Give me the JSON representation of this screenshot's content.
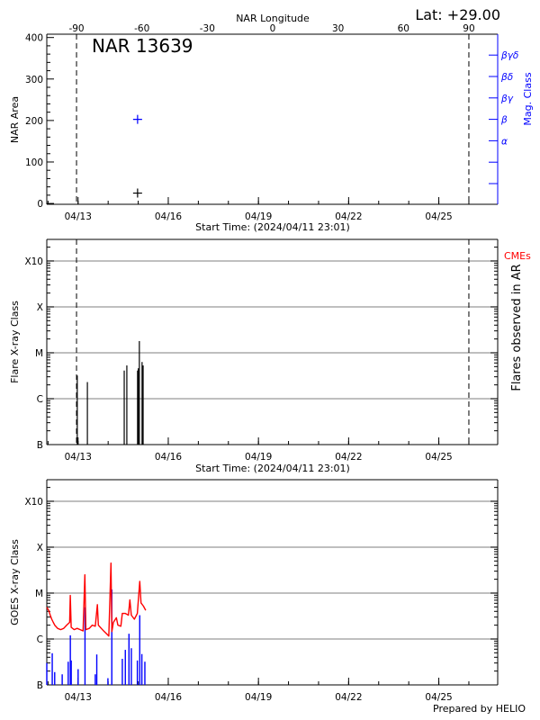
{
  "header": {
    "lat_label": "Lat: +29.00"
  },
  "footer": {
    "prepared_by": "Prepared by HELIO"
  },
  "chart_data": [
    {
      "type": "scatter",
      "title": "NAR 13639",
      "top_xlabel": "NAR Longitude",
      "top_xticks": [
        "-90",
        "-60",
        "-30",
        "0",
        "30",
        "60",
        "90"
      ],
      "xlabel": "Start Time: (2024/04/11 23:01)",
      "ylabel": "NAR Area",
      "y2label": "Mag. Class",
      "xlim": [
        "2024-04-11T23:01",
        "2024-04-26T23:01"
      ],
      "xtick_dates": [
        "2024-04-13T00:00",
        "2024-04-16T00:00",
        "2024-04-19T00:00",
        "2024-04-22T00:00",
        "2024-04-25T00:00"
      ],
      "xtick_labels": [
        "04/13",
        "04/16",
        "04/19",
        "04/22",
        "04/25"
      ],
      "ylim": [
        -2,
        408
      ],
      "yticks": [
        "0",
        "100",
        "200",
        "300",
        "400"
      ],
      "limb_lines": [
        {
          "longitude": -90,
          "time": "2024-04-12T22:45"
        },
        {
          "longitude": 90,
          "time": "2024-04-26T00:00"
        }
      ],
      "mag_class_ticks": [
        "",
        "",
        "α",
        "β",
        "βγ",
        "βδ",
        "βγδ"
      ],
      "area_points": [
        {
          "time": "2024-04-14T23:30",
          "value": 25
        }
      ],
      "mag_class_points": [
        {
          "time": "2024-04-14T23:30",
          "value": "β"
        }
      ],
      "colors": {
        "area": "#000000",
        "mag_class": "#0000ff"
      }
    },
    {
      "type": "bar",
      "xlabel": "Start Time: (2024/04/11 23:01)",
      "ylabel": "Flare X-ray Class",
      "y2label": "Flares observed in AR",
      "cme_label": "CMEs",
      "yscale": "log",
      "ylim": [
        1e-07,
        0.00295
      ],
      "yticks": [
        {
          "label": "B",
          "value": 1e-07
        },
        {
          "label": "C",
          "value": 1e-06
        },
        {
          "label": "M",
          "value": 1e-05
        },
        {
          "label": "X",
          "value": 0.0001
        },
        {
          "label": "X10",
          "value": 0.001
        }
      ],
      "grid": true,
      "xlim": [
        "2024-04-11T23:01",
        "2024-04-26T23:01"
      ],
      "xtick_dates": [
        "2024-04-13T00:00",
        "2024-04-16T00:00",
        "2024-04-19T00:00",
        "2024-04-22T00:00",
        "2024-04-25T00:00"
      ],
      "xtick_labels": [
        "04/13",
        "04/16",
        "04/19",
        "04/22",
        "04/25"
      ],
      "flares": [
        {
          "time": "2024-04-12T23:20",
          "class": "C3.2"
        },
        {
          "time": "2024-04-13T07:25",
          "class": "C2.3"
        },
        {
          "time": "2024-04-14T12:50",
          "class": "C4.1"
        },
        {
          "time": "2024-04-14T14:55",
          "class": "C5.3"
        },
        {
          "time": "2024-04-14T23:30",
          "class": "C4.1"
        },
        {
          "time": "2024-04-15T00:05",
          "class": "C4.6"
        },
        {
          "time": "2024-04-15T00:55",
          "class": "M1.8"
        },
        {
          "time": "2024-04-15T03:05",
          "class": "C6.3"
        },
        {
          "time": "2024-04-15T03:55",
          "class": "C5.3"
        }
      ],
      "colors": {
        "flares": "#000000",
        "cme_label": "#ff0000",
        "grid": "#999999"
      }
    },
    {
      "type": "line",
      "ylabel": "GOES X-ray Class",
      "yscale": "log",
      "ylim": [
        1e-07,
        0.00295
      ],
      "yticks": [
        {
          "label": "B",
          "value": 1e-07
        },
        {
          "label": "C",
          "value": 1e-06
        },
        {
          "label": "M",
          "value": 1e-05
        },
        {
          "label": "X",
          "value": 0.0001
        },
        {
          "label": "X10",
          "value": 0.001
        }
      ],
      "grid": true,
      "xlim": [
        "2024-04-11T23:01",
        "2024-04-26T23:01"
      ],
      "xtick_dates": [
        "2024-04-13T00:00",
        "2024-04-16T00:00",
        "2024-04-19T00:00",
        "2024-04-22T00:00",
        "2024-04-25T00:00"
      ],
      "xtick_labels": [
        "04/13",
        "04/16",
        "04/19",
        "04/22",
        "04/25"
      ],
      "series": [
        {
          "color": "#ff0000",
          "points": [
            [
              "2024-04-11T23:01",
              4.9e-06
            ],
            [
              "2024-04-12T00:30",
              4.2e-06
            ],
            [
              "2024-04-12T01:45",
              3.3e-06
            ],
            [
              "2024-04-12T03:00",
              2.7e-06
            ],
            [
              "2024-04-12T04:10",
              2.3e-06
            ],
            [
              "2024-04-12T05:20",
              2e-06
            ],
            [
              "2024-04-12T07:40",
              1.7e-06
            ],
            [
              "2024-04-12T10:05",
              1.6e-06
            ],
            [
              "2024-04-12T12:30",
              1.7e-06
            ],
            [
              "2024-04-12T14:55",
              2e-06
            ],
            [
              "2024-04-12T17:15",
              2.3e-06
            ],
            [
              "2024-04-12T17:45",
              8.9e-06
            ],
            [
              "2024-04-12T18:30",
              1.8e-06
            ],
            [
              "2024-04-12T20:50",
              1.6e-06
            ],
            [
              "2024-04-12T23:15",
              1.7e-06
            ],
            [
              "2024-04-13T01:40",
              1.6e-06
            ],
            [
              "2024-04-13T04:00",
              1.5e-06
            ],
            [
              "2024-04-13T05:25",
              2.5e-05
            ],
            [
              "2024-04-13T06:10",
              1.6e-06
            ],
            [
              "2024-04-13T08:55",
              1.7e-06
            ],
            [
              "2024-04-13T11:20",
              2e-06
            ],
            [
              "2024-04-13T13:45",
              1.9e-06
            ],
            [
              "2024-04-13T15:25",
              5.6e-06
            ],
            [
              "2024-04-13T16:10",
              2e-06
            ],
            [
              "2024-04-13T18:30",
              1.7e-06
            ],
            [
              "2024-04-13T20:55",
              1.45e-06
            ],
            [
              "2024-04-13T23:20",
              1.25e-06
            ],
            [
              "2024-04-14T00:30",
              1.16e-06
            ],
            [
              "2024-04-14T02:15",
              4.5e-05
            ],
            [
              "2024-04-14T03:00",
              1.45e-06
            ],
            [
              "2024-04-14T04:10",
              2.3e-06
            ],
            [
              "2024-04-14T06:35",
              2.9e-06
            ],
            [
              "2024-04-14T07:45",
              2e-06
            ],
            [
              "2024-04-14T10:10",
              1.9e-06
            ],
            [
              "2024-04-14T11:20",
              3.6e-06
            ],
            [
              "2024-04-14T13:45",
              3.6e-06
            ],
            [
              "2024-04-14T16:10",
              3.3e-06
            ],
            [
              "2024-04-14T17:20",
              7.1e-06
            ],
            [
              "2024-04-14T18:30",
              3.3e-06
            ],
            [
              "2024-04-14T20:55",
              2.7e-06
            ],
            [
              "2024-04-14T23:20",
              3.6e-06
            ],
            [
              "2024-04-15T01:15",
              1.8e-05
            ],
            [
              "2024-04-15T02:15",
              6.1e-06
            ],
            [
              "2024-04-15T04:10",
              5.2e-06
            ],
            [
              "2024-04-15T06:00",
              4.2e-06
            ]
          ]
        },
        {
          "color": "#0000ff",
          "points": [
            [
              "2024-04-11T23:01",
              3e-07
            ],
            [
              "2024-04-12T03:22",
              4.9e-07
            ],
            [
              "2024-04-12T05:19",
              1.9e-07
            ],
            [
              "2024-04-12T11:19",
              1.7e-07
            ],
            [
              "2024-04-12T16:07",
              3.2e-07
            ],
            [
              "2024-04-12T17:49",
              1.2e-06
            ],
            [
              "2024-04-12T18:31",
              3.4e-07
            ],
            [
              "2024-04-13T00:01",
              2.2e-07
            ],
            [
              "2024-04-13T05:31",
              4.9e-06
            ],
            [
              "2024-04-13T13:43",
              1.7e-07
            ],
            [
              "2024-04-13T14:55",
              4.6e-07
            ],
            [
              "2024-04-13T23:49",
              1.4e-07
            ],
            [
              "2024-04-14T02:55",
              1.2e-05
            ],
            [
              "2024-04-14T11:19",
              3.7e-07
            ],
            [
              "2024-04-14T13:43",
              5.8e-07
            ],
            [
              "2024-04-14T16:37",
              1.3e-06
            ],
            [
              "2024-04-14T18:31",
              6.3e-07
            ],
            [
              "2024-04-14T23:19",
              3.4e-07
            ],
            [
              "2024-04-15T01:13",
              3.3e-06
            ],
            [
              "2024-04-15T02:55",
              4.7e-07
            ],
            [
              "2024-04-15T05:19",
              3.2e-07
            ]
          ]
        }
      ],
      "colors": {
        "grid": "#999999"
      }
    }
  ]
}
